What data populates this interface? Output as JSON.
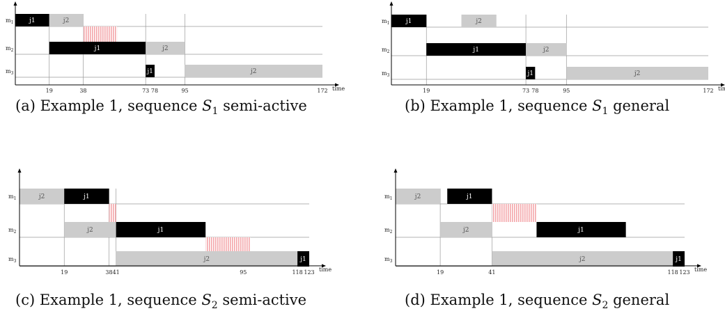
{
  "colors": {
    "j1": "#000000",
    "j2": "#cccccc",
    "idle": "#f4a6aa",
    "axis": "#000000",
    "guide": "#9a9a9a"
  },
  "axis_title": "time",
  "panels": [
    {
      "id": "a",
      "caption": {
        "prefix": "(a) Example 1, sequence ",
        "seq": "S",
        "sub": "1",
        "suffix": " semi-active"
      },
      "machines": [
        "m1",
        "m2",
        "m3"
      ],
      "t_max": 172,
      "ticks": [
        "19",
        "38",
        "73",
        "78",
        "95",
        "172"
      ],
      "bars": [
        {
          "m": 0,
          "start": 0,
          "end": 19,
          "job": "j1"
        },
        {
          "m": 0,
          "start": 19,
          "end": 38,
          "job": "j2"
        },
        {
          "m": 1,
          "start": 19,
          "end": 73,
          "job": "j1"
        },
        {
          "m": 1,
          "start": 73,
          "end": 95,
          "job": "j2"
        },
        {
          "m": 2,
          "start": 73,
          "end": 78,
          "job": "j1"
        },
        {
          "m": 2,
          "start": 95,
          "end": 172,
          "job": "j2"
        }
      ],
      "idle": [
        {
          "m": 0,
          "start": 38,
          "end": 57
        }
      ],
      "guides": [
        19,
        38,
        73,
        95
      ]
    },
    {
      "id": "b",
      "caption": {
        "prefix": "(b) Example 1, sequence ",
        "seq": "S",
        "sub": "1",
        "suffix": " general"
      },
      "machines": [
        "m1",
        "m2",
        "m3"
      ],
      "t_max": 172,
      "ticks": [
        "19",
        "73",
        "78",
        "95",
        "172"
      ],
      "bars": [
        {
          "m": 0,
          "start": 0,
          "end": 19,
          "job": "j1"
        },
        {
          "m": 0,
          "start": 38,
          "end": 57,
          "job": "j2"
        },
        {
          "m": 1,
          "start": 19,
          "end": 73,
          "job": "j1"
        },
        {
          "m": 1,
          "start": 73,
          "end": 95,
          "job": "j2"
        },
        {
          "m": 2,
          "start": 73,
          "end": 78,
          "job": "j1"
        },
        {
          "m": 2,
          "start": 95,
          "end": 172,
          "job": "j2"
        }
      ],
      "idle": [],
      "guides": [
        19,
        73,
        95
      ]
    },
    {
      "id": "c",
      "caption": {
        "prefix": "(c) Example 1, sequence ",
        "seq": "S",
        "sub": "2",
        "suffix": " semi-active"
      },
      "machines": [
        "m1",
        "m2",
        "m3"
      ],
      "t_max": 123,
      "ticks": [
        "19",
        "38",
        "41",
        "95",
        "118",
        "123"
      ],
      "bars": [
        {
          "m": 0,
          "start": 0,
          "end": 19,
          "job": "j2"
        },
        {
          "m": 0,
          "start": 19,
          "end": 38,
          "job": "j1"
        },
        {
          "m": 1,
          "start": 19,
          "end": 41,
          "job": "j2"
        },
        {
          "m": 1,
          "start": 41,
          "end": 79,
          "job": "j1"
        },
        {
          "m": 2,
          "start": 41,
          "end": 118,
          "job": "j2"
        },
        {
          "m": 2,
          "start": 118,
          "end": 123,
          "job": "j1"
        }
      ],
      "idle": [
        {
          "m": 0,
          "start": 38,
          "end": 41
        },
        {
          "m": 1,
          "start": 79,
          "end": 98
        }
      ],
      "guides": [
        19,
        38,
        41
      ]
    },
    {
      "id": "d",
      "caption": {
        "prefix": "(d) Example 1, sequence ",
        "seq": "S",
        "sub": "2",
        "suffix": " general"
      },
      "machines": [
        "m1",
        "m2",
        "m3"
      ],
      "t_max": 123,
      "ticks": [
        "19",
        "41",
        "118",
        "123"
      ],
      "bars": [
        {
          "m": 0,
          "start": 0,
          "end": 19,
          "job": "j2"
        },
        {
          "m": 0,
          "start": 22,
          "end": 41,
          "job": "j1"
        },
        {
          "m": 1,
          "start": 19,
          "end": 41,
          "job": "j2"
        },
        {
          "m": 1,
          "start": 60,
          "end": 98,
          "job": "j1"
        },
        {
          "m": 2,
          "start": 41,
          "end": 118,
          "job": "j2"
        },
        {
          "m": 2,
          "start": 118,
          "end": 123,
          "job": "j1"
        }
      ],
      "idle": [
        {
          "m": 0,
          "start": 41,
          "end": 60
        }
      ],
      "guides": [
        19,
        41
      ]
    }
  ]
}
